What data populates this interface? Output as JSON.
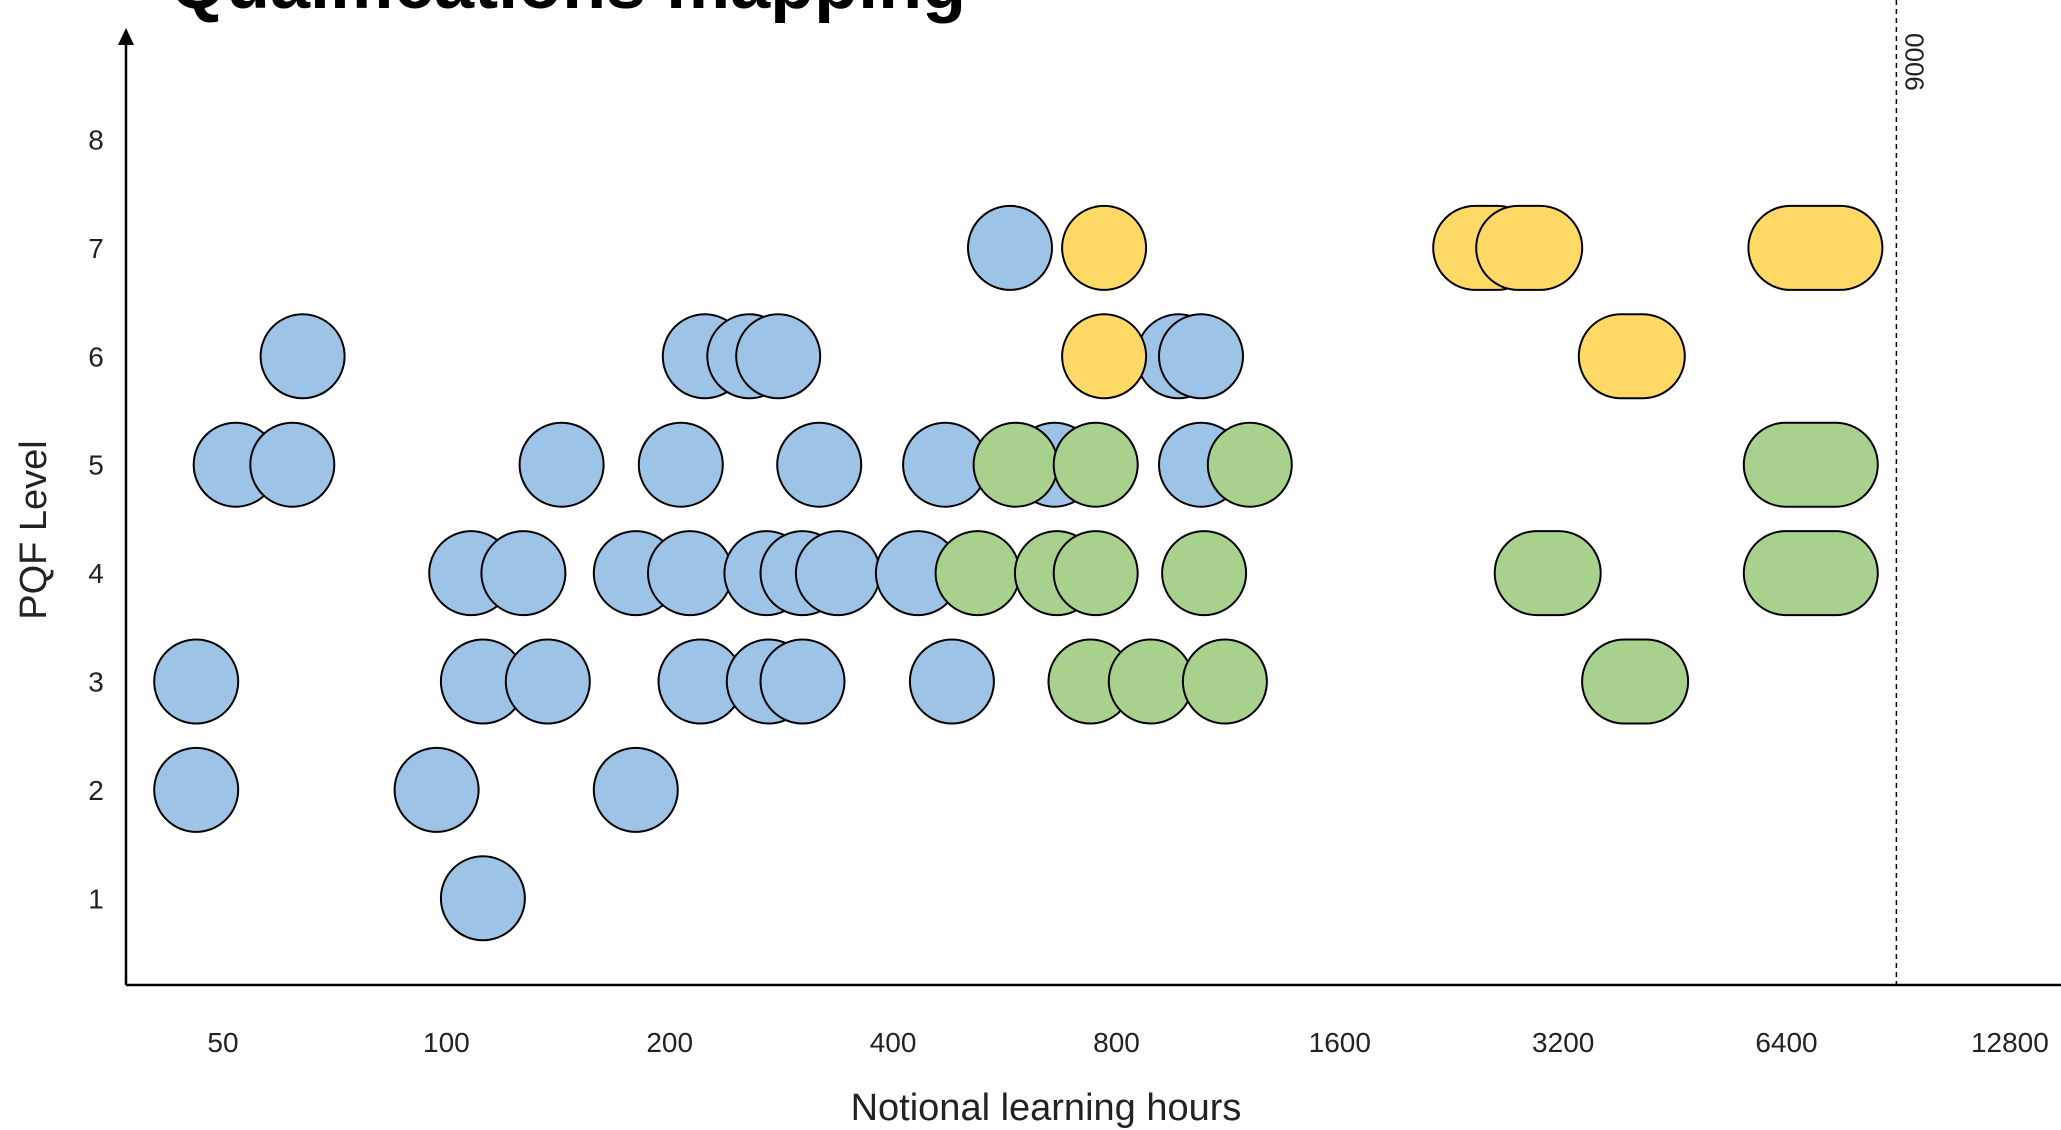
{
  "chart_data": {
    "type": "scatter",
    "title": "Qualifications mapping",
    "xlabel": "Notional learning hours",
    "ylabel": "PQF Level",
    "x_scale": "log2",
    "x_ticks": [
      50,
      100,
      200,
      400,
      800,
      1600,
      3200,
      6400,
      12800
    ],
    "y_ticks": [
      1,
      2,
      3,
      4,
      5,
      6,
      7,
      8
    ],
    "xlim": [
      37,
      15000
    ],
    "ylim": [
      0.2,
      8.9
    ],
    "grid": false,
    "legend": "none",
    "reference_line": {
      "x": 9000,
      "label": "9000"
    },
    "category_colors": {
      "blue": "#9dc3e6",
      "green": "#a9d18e",
      "yellow": "#ffd966",
      "outline": "#000000"
    },
    "series": [
      {
        "color_key": "blue",
        "points": [
          {
            "x": 46,
            "y": 2
          },
          {
            "x": 46,
            "y": 3
          },
          {
            "x": 52,
            "y": 5
          },
          {
            "x": 62,
            "y": 5
          },
          {
            "x": 64,
            "y": 6
          },
          {
            "x": 97,
            "y": 2
          },
          {
            "x": 112,
            "y": 1
          },
          {
            "x": 112,
            "y": 3
          },
          {
            "x": 137,
            "y": 3
          },
          {
            "x": 108,
            "y": 4
          },
          {
            "x": 127,
            "y": 4
          },
          {
            "x": 143,
            "y": 5
          },
          {
            "x": 180,
            "y": 2
          },
          {
            "x": 180,
            "y": 4
          },
          {
            "x": 213,
            "y": 4
          },
          {
            "x": 207,
            "y": 5
          },
          {
            "x": 223,
            "y": 6
          },
          {
            "x": 256,
            "y": 6
          },
          {
            "x": 280,
            "y": 6
          },
          {
            "x": 220,
            "y": 3
          },
          {
            "x": 272,
            "y": 3
          },
          {
            "x": 302,
            "y": 3
          },
          {
            "x": 270,
            "y": 4
          },
          {
            "x": 302,
            "y": 4
          },
          {
            "x": 337,
            "y": 4
          },
          {
            "x": 318,
            "y": 5
          },
          {
            "x": 432,
            "y": 4
          },
          {
            "x": 470,
            "y": 5
          },
          {
            "x": 480,
            "y": 3
          },
          {
            "x": 575,
            "y": 7
          },
          {
            "x": 660,
            "y": 5
          },
          {
            "x": 970,
            "y": 6
          },
          {
            "x": 1040,
            "y": 6
          },
          {
            "x": 1040,
            "y": 5
          }
        ]
      },
      {
        "color_key": "green",
        "points": [
          {
            "x": 520,
            "y": 4
          },
          {
            "x": 585,
            "y": 5
          },
          {
            "x": 665,
            "y": 4
          },
          {
            "x": 738,
            "y": 3
          },
          {
            "x": 750,
            "y": 5
          },
          {
            "x": 750,
            "y": 4
          },
          {
            "x": 890,
            "y": 3
          },
          {
            "x": 1050,
            "y": 4
          },
          {
            "x": 1120,
            "y": 3
          },
          {
            "x": 1210,
            "y": 5
          },
          {
            "x": 3050,
            "y": 4
          },
          {
            "x": 4000,
            "y": 3
          },
          {
            "x": 6900,
            "y": 5
          },
          {
            "x": 6900,
            "y": 4
          }
        ]
      },
      {
        "color_key": "yellow",
        "points": [
          {
            "x": 770,
            "y": 7
          },
          {
            "x": 770,
            "y": 6
          },
          {
            "x": 2520,
            "y": 7
          },
          {
            "x": 2880,
            "y": 7
          },
          {
            "x": 3960,
            "y": 6
          },
          {
            "x": 7000,
            "y": 7
          }
        ]
      }
    ]
  }
}
